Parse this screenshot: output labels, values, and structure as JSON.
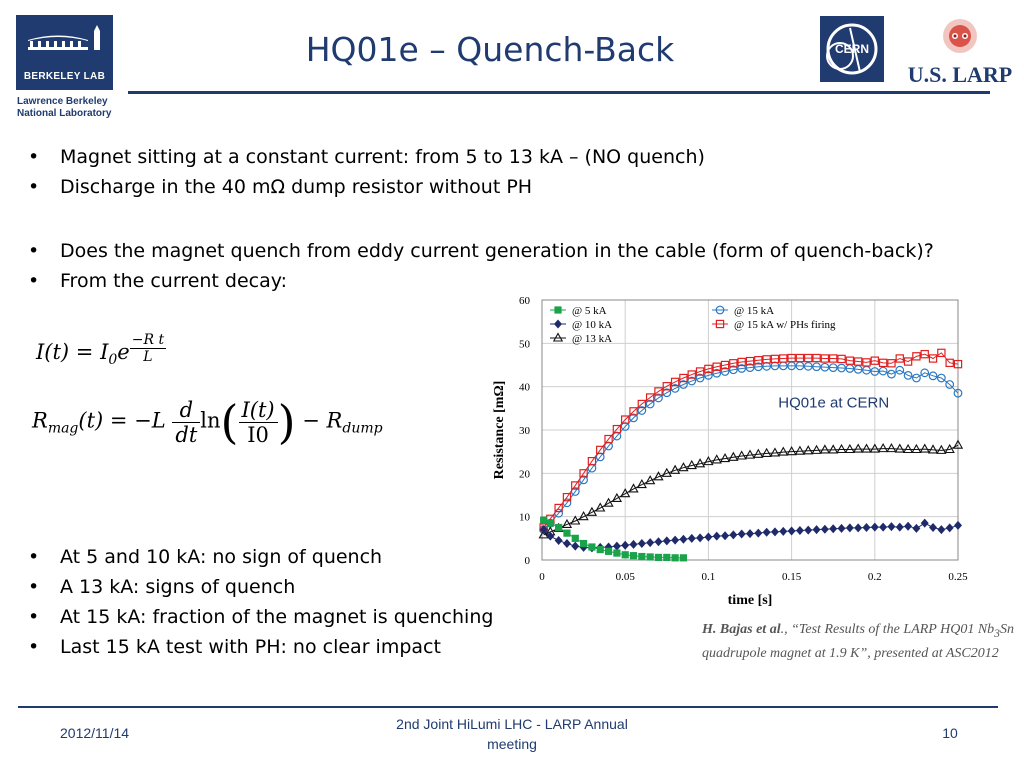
{
  "header": {
    "title": "HQ01e – Quench-Back",
    "berkeley_logo_text": "BERKELEY LAB",
    "lbnl_line1": "Lawrence Berkeley",
    "lbnl_line2": "National Laboratory",
    "cern_logo_text": "CERN",
    "larp_logo_text": "U.S. LARP",
    "brand_color": "#1f3b6f"
  },
  "bullets": {
    "b1": "Magnet sitting at a constant current: from 5 to 13 kA – (NO quench)",
    "b2": "Discharge in the 40 mΩ dump resistor without PH",
    "b3": "Does the magnet quench from eddy current generation in the cable (form of quench-back)?",
    "b4": "From the current decay:",
    "b5": "At 5 and 10 kA: no sign of quench",
    "b6": "A 13 kA: signs of quench",
    "b7": "At 15 kA:  fraction of the magnet is quenching",
    "b8": "Last 15 kA test with PH: no clear impact"
  },
  "equations": {
    "eq1_lhs": "I(t) = I",
    "eq1_sub": "0",
    "eq1_e": "e",
    "eq1_exp_num": "−R t",
    "eq1_exp_den": "L",
    "eq2_lhs": "R",
    "eq2_sub": "mag",
    "eq2_mid": "(t) = −L",
    "eq2_d_num": "d",
    "eq2_d_den": "dt",
    "eq2_ln": "ln",
    "eq2_frac_num": "I(t)",
    "eq2_frac_den": "I0",
    "eq2_minus": "− R",
    "eq2_dump": "dump"
  },
  "chart_data": {
    "type": "scatter",
    "title": "",
    "annotation": "HQ01e at CERN",
    "xlabel": "time [s]",
    "ylabel": "Resistance [mΩ]",
    "xlim": [
      0,
      0.25
    ],
    "ylim": [
      0,
      60
    ],
    "x_ticks": [
      "0",
      "0.05",
      "0.1",
      "0.15",
      "0.2",
      "0.25"
    ],
    "y_ticks": [
      "0",
      "10",
      "20",
      "30",
      "40",
      "50",
      "60"
    ],
    "grid": true,
    "legend_placement": "top",
    "series": [
      {
        "name": "@ 5 kA",
        "color": "#1aa34a",
        "marker": "square-filled",
        "points": [
          [
            0.001,
            9.2
          ],
          [
            0.005,
            8.5
          ],
          [
            0.01,
            7.5
          ],
          [
            0.015,
            6.2
          ],
          [
            0.02,
            5.0
          ],
          [
            0.025,
            3.8
          ],
          [
            0.03,
            3.0
          ],
          [
            0.035,
            2.4
          ],
          [
            0.04,
            2.0
          ],
          [
            0.045,
            1.6
          ],
          [
            0.05,
            1.2
          ],
          [
            0.055,
            1.0
          ],
          [
            0.06,
            0.8
          ],
          [
            0.065,
            0.7
          ],
          [
            0.07,
            0.6
          ],
          [
            0.075,
            0.6
          ],
          [
            0.08,
            0.5
          ],
          [
            0.085,
            0.5
          ]
        ]
      },
      {
        "name": "@ 10 kA",
        "color": "#1f2a6b",
        "marker": "diamond-filled",
        "points": [
          [
            0.001,
            7.0
          ],
          [
            0.005,
            5.5
          ],
          [
            0.01,
            4.5
          ],
          [
            0.015,
            3.8
          ],
          [
            0.02,
            3.2
          ],
          [
            0.025,
            2.9
          ],
          [
            0.03,
            2.8
          ],
          [
            0.035,
            2.9
          ],
          [
            0.04,
            3.0
          ],
          [
            0.045,
            3.2
          ],
          [
            0.05,
            3.4
          ],
          [
            0.055,
            3.6
          ],
          [
            0.06,
            3.8
          ],
          [
            0.065,
            4.0
          ],
          [
            0.07,
            4.2
          ],
          [
            0.075,
            4.4
          ],
          [
            0.08,
            4.6
          ],
          [
            0.085,
            4.8
          ],
          [
            0.09,
            5.0
          ],
          [
            0.095,
            5.1
          ],
          [
            0.1,
            5.3
          ],
          [
            0.105,
            5.5
          ],
          [
            0.11,
            5.6
          ],
          [
            0.115,
            5.8
          ],
          [
            0.12,
            6.0
          ],
          [
            0.125,
            6.1
          ],
          [
            0.13,
            6.2
          ],
          [
            0.135,
            6.4
          ],
          [
            0.14,
            6.5
          ],
          [
            0.145,
            6.6
          ],
          [
            0.15,
            6.7
          ],
          [
            0.155,
            6.8
          ],
          [
            0.16,
            6.9
          ],
          [
            0.165,
            7.0
          ],
          [
            0.17,
            7.1
          ],
          [
            0.175,
            7.2
          ],
          [
            0.18,
            7.3
          ],
          [
            0.185,
            7.4
          ],
          [
            0.19,
            7.4
          ],
          [
            0.195,
            7.5
          ],
          [
            0.2,
            7.6
          ],
          [
            0.205,
            7.6
          ],
          [
            0.21,
            7.7
          ],
          [
            0.215,
            7.6
          ],
          [
            0.22,
            7.8
          ],
          [
            0.225,
            7.3
          ],
          [
            0.23,
            8.5
          ],
          [
            0.235,
            7.5
          ],
          [
            0.24,
            7.0
          ],
          [
            0.245,
            7.4
          ],
          [
            0.25,
            8.0
          ]
        ]
      },
      {
        "name": "@ 13 kA",
        "color": "#111111",
        "marker": "triangle-open",
        "points": [
          [
            0.001,
            5.8
          ],
          [
            0.005,
            6.5
          ],
          [
            0.01,
            7.3
          ],
          [
            0.015,
            8.2
          ],
          [
            0.02,
            9.0
          ],
          [
            0.025,
            10.0
          ],
          [
            0.03,
            11.0
          ],
          [
            0.035,
            12.0
          ],
          [
            0.04,
            13.1
          ],
          [
            0.045,
            14.2
          ],
          [
            0.05,
            15.3
          ],
          [
            0.055,
            16.4
          ],
          [
            0.06,
            17.4
          ],
          [
            0.065,
            18.3
          ],
          [
            0.07,
            19.2
          ],
          [
            0.075,
            20.0
          ],
          [
            0.08,
            20.7
          ],
          [
            0.085,
            21.3
          ],
          [
            0.09,
            21.8
          ],
          [
            0.095,
            22.2
          ],
          [
            0.1,
            22.7
          ],
          [
            0.105,
            23.1
          ],
          [
            0.11,
            23.4
          ],
          [
            0.115,
            23.7
          ],
          [
            0.12,
            24.0
          ],
          [
            0.125,
            24.2
          ],
          [
            0.13,
            24.4
          ],
          [
            0.135,
            24.6
          ],
          [
            0.14,
            24.7
          ],
          [
            0.145,
            24.9
          ],
          [
            0.15,
            25.0
          ],
          [
            0.155,
            25.1
          ],
          [
            0.16,
            25.2
          ],
          [
            0.165,
            25.3
          ],
          [
            0.17,
            25.4
          ],
          [
            0.175,
            25.4
          ],
          [
            0.18,
            25.5
          ],
          [
            0.185,
            25.5
          ],
          [
            0.19,
            25.6
          ],
          [
            0.195,
            25.6
          ],
          [
            0.2,
            25.6
          ],
          [
            0.205,
            25.7
          ],
          [
            0.21,
            25.7
          ],
          [
            0.215,
            25.6
          ],
          [
            0.22,
            25.5
          ],
          [
            0.225,
            25.5
          ],
          [
            0.23,
            25.6
          ],
          [
            0.235,
            25.4
          ],
          [
            0.24,
            25.3
          ],
          [
            0.245,
            25.5
          ],
          [
            0.25,
            26.5
          ]
        ]
      },
      {
        "name": "@ 15 kA",
        "color": "#2a78c2",
        "marker": "circle-open",
        "points": [
          [
            0.001,
            7.0
          ],
          [
            0.005,
            8.5
          ],
          [
            0.01,
            10.8
          ],
          [
            0.015,
            13.2
          ],
          [
            0.02,
            15.8
          ],
          [
            0.025,
            18.5
          ],
          [
            0.03,
            21.2
          ],
          [
            0.035,
            23.8
          ],
          [
            0.04,
            26.3
          ],
          [
            0.045,
            28.6
          ],
          [
            0.05,
            30.8
          ],
          [
            0.055,
            32.8
          ],
          [
            0.06,
            34.5
          ],
          [
            0.065,
            36.0
          ],
          [
            0.07,
            37.4
          ],
          [
            0.075,
            38.6
          ],
          [
            0.08,
            39.6
          ],
          [
            0.085,
            40.5
          ],
          [
            0.09,
            41.3
          ],
          [
            0.095,
            42.0
          ],
          [
            0.1,
            42.6
          ],
          [
            0.105,
            43.1
          ],
          [
            0.11,
            43.5
          ],
          [
            0.115,
            43.9
          ],
          [
            0.12,
            44.2
          ],
          [
            0.125,
            44.4
          ],
          [
            0.13,
            44.6
          ],
          [
            0.135,
            44.7
          ],
          [
            0.14,
            44.8
          ],
          [
            0.145,
            44.8
          ],
          [
            0.15,
            44.8
          ],
          [
            0.155,
            44.8
          ],
          [
            0.16,
            44.7
          ],
          [
            0.165,
            44.6
          ],
          [
            0.17,
            44.5
          ],
          [
            0.175,
            44.4
          ],
          [
            0.18,
            44.3
          ],
          [
            0.185,
            44.2
          ],
          [
            0.19,
            44.0
          ],
          [
            0.195,
            43.8
          ],
          [
            0.2,
            43.5
          ],
          [
            0.205,
            43.6
          ],
          [
            0.21,
            42.9
          ],
          [
            0.215,
            43.8
          ],
          [
            0.22,
            42.6
          ],
          [
            0.225,
            42.0
          ],
          [
            0.23,
            43.2
          ],
          [
            0.235,
            42.5
          ],
          [
            0.24,
            42.0
          ],
          [
            0.245,
            40.5
          ],
          [
            0.25,
            38.5
          ]
        ]
      },
      {
        "name": "@ 15 kA w/ PHs firing",
        "color": "#e02020",
        "marker": "square-open",
        "points": [
          [
            0.001,
            7.5
          ],
          [
            0.005,
            9.5
          ],
          [
            0.01,
            12.0
          ],
          [
            0.015,
            14.5
          ],
          [
            0.02,
            17.2
          ],
          [
            0.025,
            20.0
          ],
          [
            0.03,
            22.8
          ],
          [
            0.035,
            25.4
          ],
          [
            0.04,
            27.9
          ],
          [
            0.045,
            30.2
          ],
          [
            0.05,
            32.4
          ],
          [
            0.055,
            34.3
          ],
          [
            0.06,
            36.0
          ],
          [
            0.065,
            37.5
          ],
          [
            0.07,
            38.9
          ],
          [
            0.075,
            40.1
          ],
          [
            0.08,
            41.1
          ],
          [
            0.085,
            42.0
          ],
          [
            0.09,
            42.8
          ],
          [
            0.095,
            43.5
          ],
          [
            0.1,
            44.1
          ],
          [
            0.105,
            44.6
          ],
          [
            0.11,
            45.0
          ],
          [
            0.115,
            45.4
          ],
          [
            0.12,
            45.7
          ],
          [
            0.125,
            45.9
          ],
          [
            0.13,
            46.1
          ],
          [
            0.135,
            46.3
          ],
          [
            0.14,
            46.4
          ],
          [
            0.145,
            46.5
          ],
          [
            0.15,
            46.6
          ],
          [
            0.155,
            46.6
          ],
          [
            0.16,
            46.6
          ],
          [
            0.165,
            46.6
          ],
          [
            0.17,
            46.5
          ],
          [
            0.175,
            46.5
          ],
          [
            0.18,
            46.4
          ],
          [
            0.185,
            46.0
          ],
          [
            0.19,
            45.8
          ],
          [
            0.195,
            45.6
          ],
          [
            0.2,
            46.0
          ],
          [
            0.205,
            45.5
          ],
          [
            0.21,
            45.4
          ],
          [
            0.215,
            46.5
          ],
          [
            0.22,
            45.8
          ],
          [
            0.225,
            47.0
          ],
          [
            0.23,
            47.5
          ],
          [
            0.235,
            46.5
          ],
          [
            0.24,
            47.8
          ],
          [
            0.245,
            45.5
          ],
          [
            0.25,
            45.2
          ]
        ]
      }
    ]
  },
  "citation": {
    "authors": "H. Bajas et al",
    "text_a": "., “Test Results of the LARP HQ01 Nb",
    "sub": "3",
    "text_b": "Sn quadrupole magnet at 1.9 K”, presented at ASC2012"
  },
  "footer": {
    "date": "2012/11/14",
    "center": "2nd Joint HiLumi LHC - LARP Annual meeting",
    "page": "10"
  }
}
